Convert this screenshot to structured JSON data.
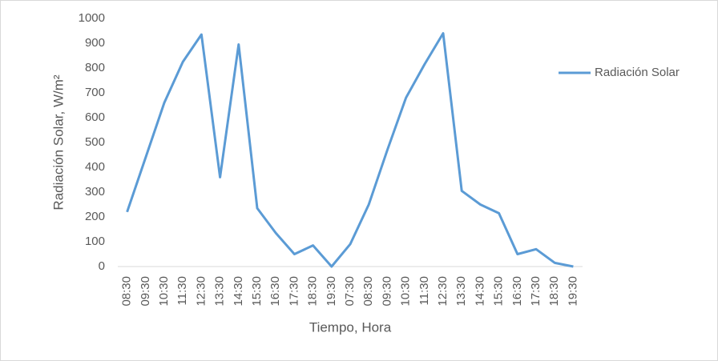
{
  "chart_data": {
    "type": "line",
    "x_label": "Tiempo, Hora",
    "y_label": "Radiación Solar, W/m²",
    "categories": [
      "08:30",
      "09:30",
      "10:30",
      "11:30",
      "12:30",
      "13:30",
      "14:30",
      "15:30",
      "16:30",
      "17:30",
      "18:30",
      "19:30",
      "07:30",
      "08:30",
      "09:30",
      "10:30",
      "11:30",
      "12:30",
      "13:30",
      "14:30",
      "15:30",
      "16:30",
      "17:30",
      "18:30",
      "19:30"
    ],
    "series": [
      {
        "name": "Radiación Solar",
        "color": "#5b9bd5",
        "values": [
          220,
          440,
          660,
          825,
          935,
          360,
          895,
          235,
          135,
          50,
          85,
          0,
          90,
          250,
          470,
          680,
          815,
          940,
          305,
          250,
          215,
          50,
          70,
          15,
          0
        ]
      }
    ],
    "ylim": [
      0,
      1000
    ],
    "yticks": [
      0,
      100,
      200,
      300,
      400,
      500,
      600,
      700,
      800,
      900,
      1000
    ],
    "grid": false,
    "legend": "right"
  }
}
